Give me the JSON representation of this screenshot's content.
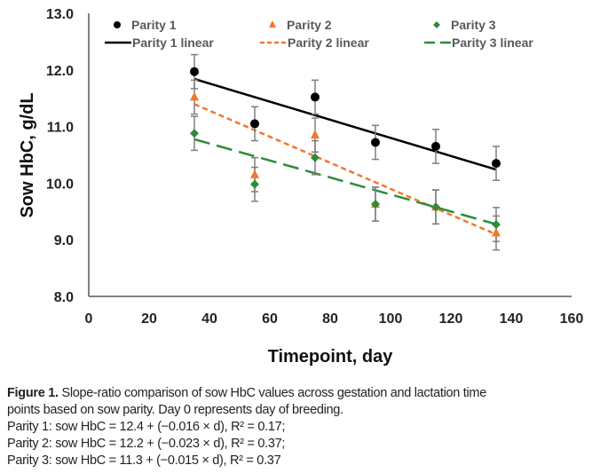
{
  "chart_data": {
    "type": "scatter",
    "title": "",
    "xlabel": "Timepoint, day",
    "ylabel": "Sow HbC, g/dL",
    "xlim": [
      0,
      160
    ],
    "ylim": [
      8.0,
      13.0
    ],
    "xticks": [
      "0",
      "20",
      "40",
      "60",
      "80",
      "100",
      "120",
      "140",
      "160"
    ],
    "yticks": [
      "8.0",
      "9.0",
      "10.0",
      "11.0",
      "12.0",
      "13.0"
    ],
    "grid": false,
    "legend_position": "top",
    "x": [
      35,
      55,
      75,
      95,
      115,
      135
    ],
    "series": [
      {
        "name": "Parity 1",
        "marker": "circle",
        "color": "#000000",
        "values": [
          11.97,
          11.05,
          11.52,
          10.72,
          10.65,
          10.35
        ],
        "error": [
          0.3,
          0.3,
          0.3,
          0.3,
          0.3,
          0.3
        ],
        "trend_name": "Parity 1 linear",
        "trend_style": "solid",
        "trend": {
          "intercept": 12.4,
          "slope": -0.016
        }
      },
      {
        "name": "Parity 2",
        "marker": "triangle",
        "color": "#F07830",
        "values": [
          11.52,
          10.15,
          10.85,
          9.63,
          9.58,
          9.12
        ],
        "error": [
          0.3,
          0.3,
          0.3,
          0.3,
          0.3,
          0.3
        ],
        "trend_name": "Parity 2 linear",
        "trend_style": "short-dash",
        "trend": {
          "intercept": 12.2,
          "slope": -0.023
        }
      },
      {
        "name": "Parity 3",
        "marker": "diamond",
        "color": "#2E8B3A",
        "values": [
          10.88,
          9.98,
          10.45,
          9.63,
          9.58,
          9.27
        ],
        "error": [
          0.3,
          0.3,
          0.3,
          0.3,
          0.3,
          0.3
        ],
        "trend_name": "Parity 3 linear",
        "trend_style": "long-dash",
        "trend": {
          "intercept": 11.3,
          "slope": -0.015
        }
      }
    ]
  },
  "caption": {
    "label": "Figure 1.",
    "text_line1": " Slope-ratio comparison of sow HbC values across gestation and lactation time",
    "text_line2": "points based on sow parity. Day 0 represents day of breeding.",
    "eq1": "Parity 1: sow HbC = 12.4 + (−0.016 × d), R² = 0.17;",
    "eq2": "Parity 2: sow HbC = 12.2 + (−0.023 × d), R² = 0.37;",
    "eq3": "Parity 3: sow HbC = 11.3 + (−0.015 × d), R² = 0.37"
  }
}
